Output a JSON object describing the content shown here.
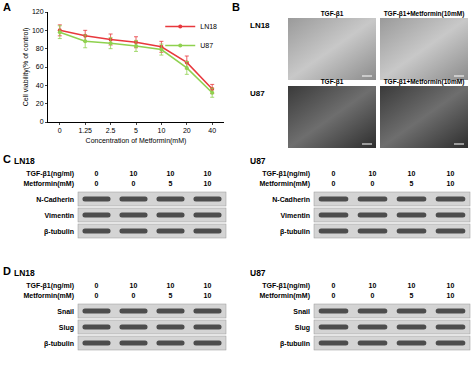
{
  "chart_data": {
    "type": "line",
    "x_label": "Concentration of Metformin(mM)",
    "y_label": "Cell viability(% of control)",
    "categories": [
      "0",
      "1.25",
      "2.5",
      "5",
      "10",
      "20",
      "40"
    ],
    "series": [
      {
        "name": "LN18",
        "color": "#e8383d",
        "marker": "circle",
        "values": [
          100,
          94,
          90,
          87,
          82,
          65,
          36
        ],
        "errors": [
          6,
          6,
          6,
          6,
          6,
          7,
          5
        ]
      },
      {
        "name": "U87",
        "color": "#8fd14f",
        "marker": "circle",
        "values": [
          98,
          88,
          86,
          83,
          79,
          59,
          32
        ],
        "errors": [
          7,
          7,
          6,
          6,
          6,
          7,
          5
        ]
      }
    ],
    "ylim": [
      0,
      120
    ],
    "yticks": [
      0,
      20,
      40,
      60,
      80,
      100,
      120
    ],
    "grid": false,
    "legend": "top-right"
  },
  "chart_panel_label": "A",
  "image_panel": {
    "label": "B",
    "columns": [
      "TGF-β1",
      "TGF-β1+Metformin(10mM)"
    ],
    "rows": [
      "LN18",
      "U87"
    ]
  },
  "blot_panels": [
    {
      "label": "C",
      "blots": [
        {
          "cell_line": "LN18",
          "treatments": [
            {
              "label": "TGF-β1(ng/ml)",
              "values": [
                0,
                10,
                10,
                10
              ]
            },
            {
              "label": "Metformin(mM)",
              "values": [
                0,
                0,
                5,
                10
              ]
            }
          ],
          "proteins": [
            "N-Cadherin",
            "Vimentin",
            "β-tubulin"
          ]
        },
        {
          "cell_line": "U87",
          "treatments": [
            {
              "label": "TGF-β1(ng/ml)",
              "values": [
                0,
                10,
                10,
                10
              ]
            },
            {
              "label": "Metformin(mM)",
              "values": [
                0,
                0,
                5,
                10
              ]
            }
          ],
          "proteins": [
            "N-Cadherin",
            "Vimentin",
            "β-tubulin"
          ]
        }
      ]
    },
    {
      "label": "D",
      "blots": [
        {
          "cell_line": "LN18",
          "treatments": [
            {
              "label": "TGF-β1(ng/ml)",
              "values": [
                0,
                10,
                10,
                10
              ]
            },
            {
              "label": "Metformin(mM)",
              "values": [
                0,
                0,
                5,
                10
              ]
            }
          ],
          "proteins": [
            "Snail",
            "Slug",
            "β-tubulin"
          ]
        },
        {
          "cell_line": "U87",
          "treatments": [
            {
              "label": "TGF-β1(ng/ml)",
              "values": [
                0,
                10,
                10,
                10
              ]
            },
            {
              "label": "Metformin(mM)",
              "values": [
                0,
                0,
                5,
                10
              ]
            }
          ],
          "proteins": [
            "Snail",
            "Slug",
            "β-tubulin"
          ]
        }
      ]
    }
  ]
}
